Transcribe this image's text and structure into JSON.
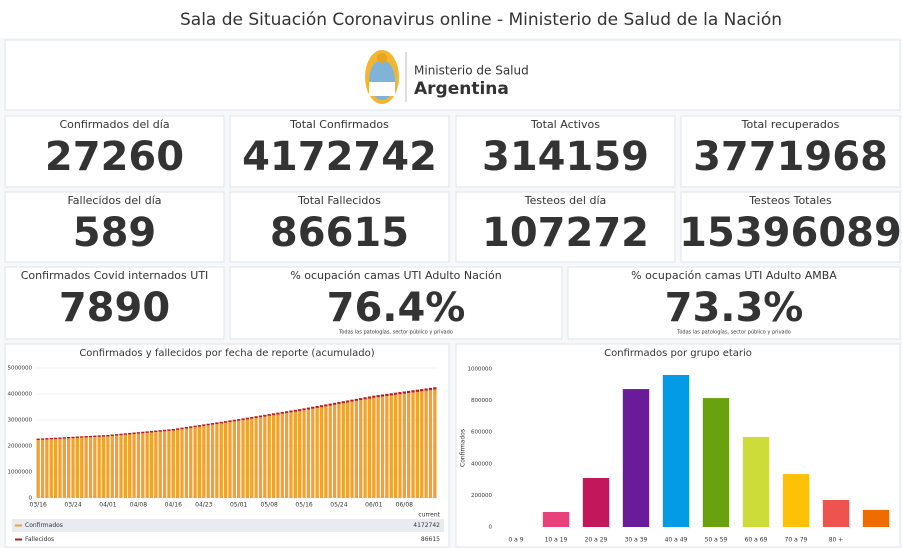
{
  "header": {
    "title": "Sala de Situación Coronavirus online - Ministerio de Salud de la Nación",
    "logo_line1": "Ministerio de Salud",
    "logo_line2": "Argentina"
  },
  "cards": [
    {
      "label": "Confirmados del día",
      "value": 27260,
      "color": "#f4a22f"
    },
    {
      "label": "Total Confirmados",
      "value": 4172742,
      "color": "#f4a22f"
    },
    {
      "label": "Total Activos",
      "value": 314159,
      "color": "#f4a22f"
    },
    {
      "label": "Total recuperados",
      "value": 3771968,
      "color": "#c9dc4a"
    },
    {
      "label": "Fallecidos del día",
      "value": 589,
      "color": "#c0272d"
    },
    {
      "label": "Total Fallecidos",
      "value": 86615,
      "color": "#c0272d"
    },
    {
      "label": "Testeos del día",
      "value": 107272,
      "color": "#178a87"
    },
    {
      "label": "Testeos Totales",
      "value": 15396089,
      "color": "#178a87"
    },
    {
      "label": "Confirmados Covid internados UTI",
      "value": 7890,
      "color": "#f4a22f"
    },
    {
      "label": "% ocupación camas UTI Adulto Nación",
      "value": "76.4%",
      "color": "#f4a22f",
      "note": "Todas las patologías, sector público y privado"
    },
    {
      "label": "% ocupación camas UTI Adulto AMBA",
      "value": "73.3%",
      "color": "#f4a22f",
      "note": "Todas las patologías, sector público y privado"
    }
  ],
  "chart_data": [
    {
      "type": "stacked_bar",
      "title": "Confirmados y fallecidos por fecha de reporte (acumulado)",
      "categories": [
        "03/16",
        null,
        null,
        null,
        null,
        null,
        null,
        null,
        "03/24",
        null,
        null,
        null,
        null,
        null,
        null,
        null,
        "04/01",
        null,
        null,
        null,
        null,
        null,
        null,
        "04/08",
        null,
        null,
        null,
        null,
        null,
        null,
        null,
        "04/16",
        null,
        null,
        null,
        null,
        null,
        null,
        "04/23",
        null,
        null,
        null,
        null,
        null,
        null,
        null,
        "05/01",
        null,
        null,
        null,
        null,
        null,
        null,
        "05/08",
        null,
        null,
        null,
        null,
        null,
        null,
        null,
        "05/16",
        null,
        null,
        null,
        null,
        null,
        null,
        null,
        "05/24",
        null,
        null,
        null,
        null,
        null,
        null,
        null,
        "06/01",
        null,
        null,
        null,
        null,
        null,
        null,
        "06/08",
        null,
        null,
        null,
        null,
        null,
        null,
        null
      ],
      "series": [
        {
          "name": "Confirmados",
          "color": "#f4a22f",
          "values": [
            2230000,
            2238750,
            2247500,
            2256250,
            2265000,
            2273750,
            2282500,
            2291250,
            2300000,
            2308750,
            2317500,
            2326250,
            2335000,
            2343750,
            2352500,
            2361250,
            2370000,
            2385000,
            2400000,
            2415000,
            2430000,
            2445000,
            2460000,
            2475000,
            2490000,
            2505000,
            2520000,
            2535000,
            2550000,
            2565000,
            2580000,
            2595000,
            2620000,
            2645000,
            2670000,
            2695000,
            2720000,
            2745000,
            2770000,
            2795000,
            2820000,
            2845000,
            2870000,
            2895000,
            2920000,
            2945000,
            2970000,
            2997000,
            3024000,
            3051000,
            3078000,
            3105000,
            3132000,
            3159000,
            3186000,
            3213000,
            3240000,
            3267000,
            3294000,
            3321000,
            3348000,
            3375000,
            3405000,
            3435000,
            3465000,
            3495000,
            3525000,
            3555000,
            3585000,
            3615000,
            3645000,
            3675000,
            3705000,
            3735000,
            3765000,
            3795000,
            3825000,
            3855000,
            3877700,
            3900400,
            3923100,
            3945800,
            3968500,
            3991200,
            4013900,
            4036600,
            4059300,
            4082000,
            4104700,
            4127400,
            4150100,
            4172742
          ]
        },
        {
          "name": "Fallecidos",
          "color": "#b71c1c",
          "values": [
            54000,
            54130,
            54260,
            54390,
            54520,
            54650,
            54780,
            54910,
            55040,
            55170,
            55300,
            55430,
            55560,
            55690,
            55820,
            55950,
            56080,
            56280,
            56480,
            56680,
            56880,
            57080,
            57280,
            57480,
            57680,
            57880,
            58080,
            58280,
            58480,
            58680,
            58880,
            59080,
            59430,
            59780,
            60130,
            60480,
            60830,
            61180,
            61530,
            61880,
            62230,
            62580,
            62930,
            63280,
            63630,
            63980,
            64330,
            64830,
            65330,
            65830,
            66330,
            66830,
            67330,
            67830,
            68330,
            68830,
            69330,
            69830,
            70330,
            70830,
            71330,
            71830,
            72350,
            72870,
            73390,
            73910,
            74430,
            74950,
            75470,
            75990,
            76510,
            77030,
            77550,
            78070,
            78590,
            79110,
            79630,
            80150,
            80612,
            81074,
            81536,
            81998,
            82460,
            82922,
            83384,
            83846,
            84308,
            84770,
            85232,
            85694,
            86156,
            86615
          ]
        }
      ],
      "ylim": [
        0,
        5000000
      ],
      "yticks": [
        0,
        1000000,
        2000000,
        3000000,
        4000000,
        5000000
      ],
      "grid": true,
      "legend_header": "current"
    },
    {
      "type": "bar",
      "title": "Confirmados por grupo etario",
      "ylabel": "Confirmados",
      "categories": [
        "0 a 9",
        "10 a 19",
        "20 a 29",
        "30 a 39",
        "40 a 49",
        "50 a 59",
        "60 a 69",
        "70 a 79",
        "80 +",
        null
      ],
      "values": [
        0,
        95000,
        310000,
        873000,
        962000,
        816000,
        570000,
        335000,
        171000,
        108000
      ],
      "colors": [
        "#9e9e9e",
        "#e8407a",
        "#c2185b",
        "#6a1b9a",
        "#039be5",
        "#6aa10f",
        "#cddc39",
        "#ffc107",
        "#ef5350",
        "#ef6c00"
      ],
      "ylim": [
        0,
        1000000
      ],
      "yticks": [
        0,
        200000,
        400000,
        600000,
        800000,
        1000000
      ],
      "grid": false
    }
  ]
}
